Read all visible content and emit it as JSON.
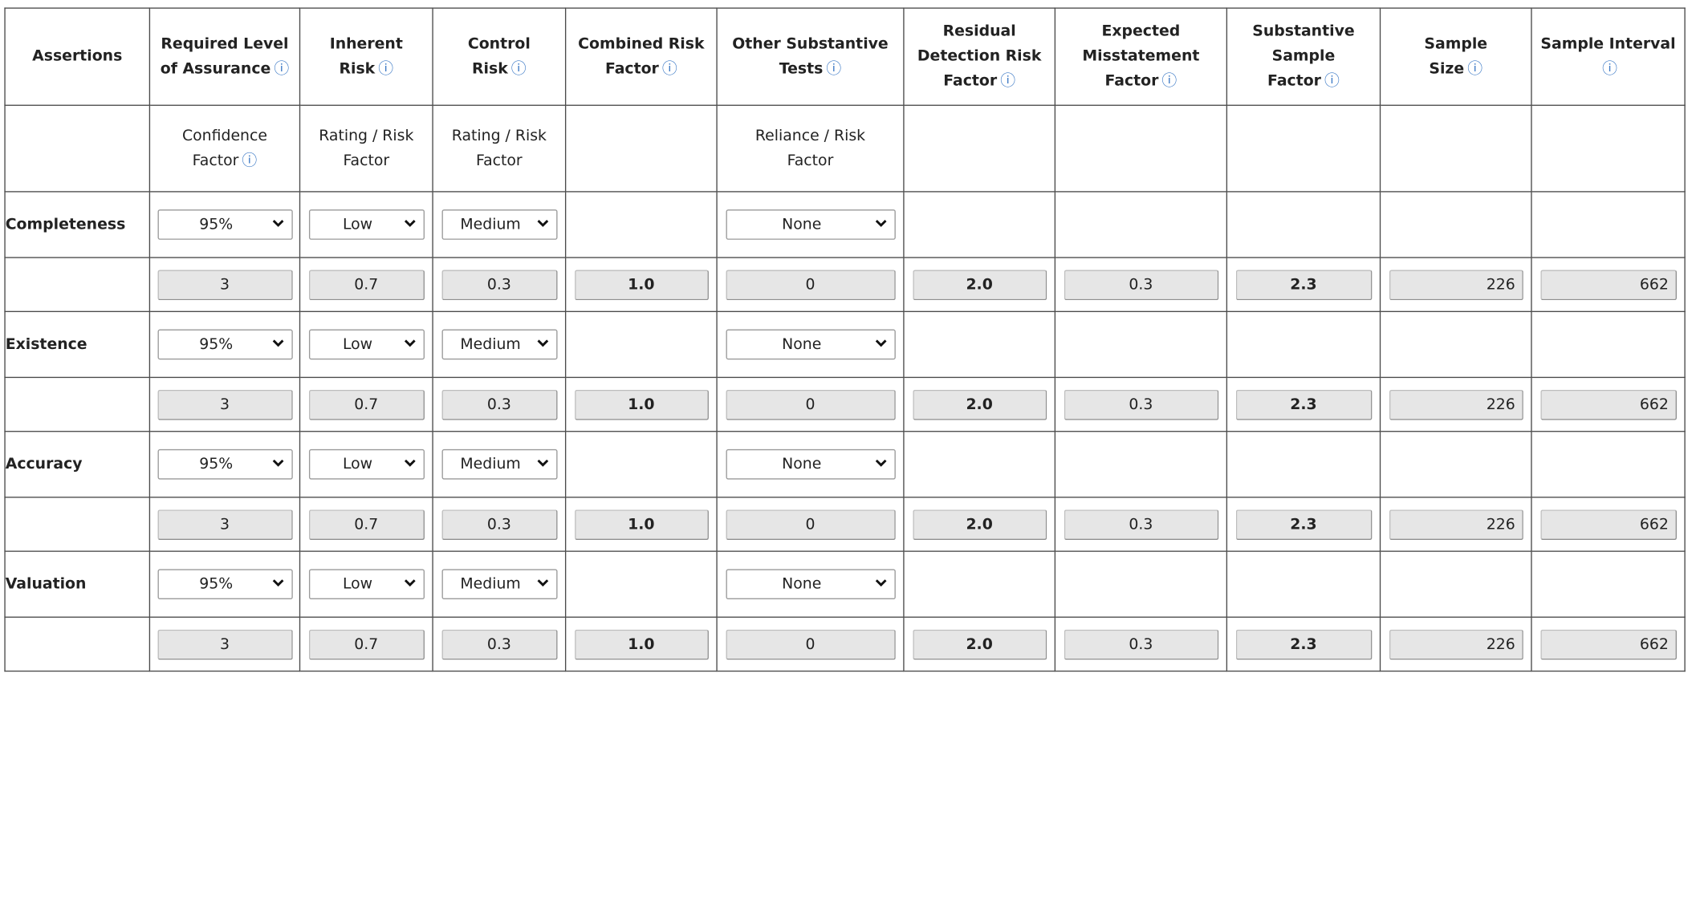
{
  "headers": {
    "assertions": "Assertions",
    "required_level": "Required Level of Assurance",
    "inherent_risk": "Inherent Risk",
    "control_risk": "Control Risk",
    "combined_risk": "Combined Risk Factor",
    "other_tests": "Other Substantive Tests",
    "residual_detection": "Residual Detection Risk Factor",
    "expected_misstatement": "Expected Misstatement Factor",
    "substantive_sample": "Substantive Sample Factor",
    "sample_size": "Sample Size",
    "sample_interval": "Sample Interval"
  },
  "info_glyph": "ⓘ",
  "subheaders": {
    "confidence": "Confidence Factor",
    "inherent": "Rating / Risk Factor",
    "control": "Rating / Risk Factor",
    "reliance": "Reliance / Risk Factor"
  },
  "rows": [
    {
      "assertion": "Completeness",
      "confidence": "95%",
      "inherent": "Low",
      "control": "Medium",
      "reliance": "None",
      "values": {
        "confidence": "3",
        "inherent": "0.7",
        "control": "0.3",
        "combined": "1.0",
        "other": "0",
        "residual": "2.0",
        "expected": "0.3",
        "substantive": "2.3",
        "size": "226",
        "interval": "662"
      }
    },
    {
      "assertion": "Existence",
      "confidence": "95%",
      "inherent": "Low",
      "control": "Medium",
      "reliance": "None",
      "values": {
        "confidence": "3",
        "inherent": "0.7",
        "control": "0.3",
        "combined": "1.0",
        "other": "0",
        "residual": "2.0",
        "expected": "0.3",
        "substantive": "2.3",
        "size": "226",
        "interval": "662"
      }
    },
    {
      "assertion": "Accuracy",
      "confidence": "95%",
      "inherent": "Low",
      "control": "Medium",
      "reliance": "None",
      "values": {
        "confidence": "3",
        "inherent": "0.7",
        "control": "0.3",
        "combined": "1.0",
        "other": "0",
        "residual": "2.0",
        "expected": "0.3",
        "substantive": "2.3",
        "size": "226",
        "interval": "662"
      }
    },
    {
      "assertion": "Valuation",
      "confidence": "95%",
      "inherent": "Low",
      "control": "Medium",
      "reliance": "None",
      "values": {
        "confidence": "3",
        "inherent": "0.7",
        "control": "0.3",
        "combined": "1.0",
        "other": "0",
        "residual": "2.0",
        "expected": "0.3",
        "substantive": "2.3",
        "size": "226",
        "interval": "662"
      }
    }
  ],
  "colors": {
    "border": "#4a4a4a",
    "info_icon": "#3a78c5",
    "value_box_bg": "#e6e6e6"
  },
  "icons": {
    "info": "info-icon",
    "dropdown": "chevron-down-icon"
  }
}
